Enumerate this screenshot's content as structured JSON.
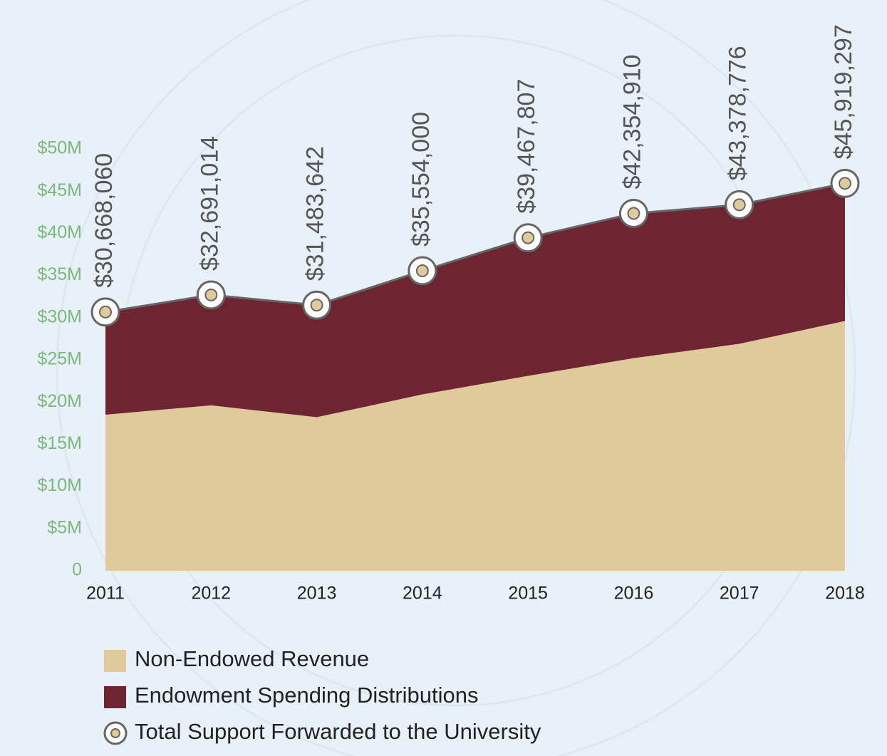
{
  "chart_data": {
    "type": "area",
    "stacked": true,
    "x": [
      2011,
      2012,
      2013,
      2014,
      2015,
      2016,
      2017,
      2018
    ],
    "ylim": [
      0,
      50000000
    ],
    "yticks": [
      {
        "value": 0,
        "label": "0"
      },
      {
        "value": 5000000,
        "label": "$5M"
      },
      {
        "value": 10000000,
        "label": "$10M"
      },
      {
        "value": 15000000,
        "label": "$15M"
      },
      {
        "value": 20000000,
        "label": "$20M"
      },
      {
        "value": 25000000,
        "label": "$25M"
      },
      {
        "value": 30000000,
        "label": "$30M"
      },
      {
        "value": 35000000,
        "label": "$35M"
      },
      {
        "value": 40000000,
        "label": "$40M"
      },
      {
        "value": 45000000,
        "label": "$45M"
      },
      {
        "value": 50000000,
        "label": "$50M"
      }
    ],
    "series": [
      {
        "name": "Non-Endowed Revenue",
        "color": "#e0ca9b",
        "values": [
          18500000,
          19600000,
          18200000,
          20900000,
          23100000,
          25200000,
          26900000,
          29600000
        ]
      },
      {
        "name": "Endowment Spending Distributions",
        "color": "#6f2431",
        "values": [
          12200000,
          13100000,
          13300000,
          14700000,
          16400000,
          17200000,
          16500000,
          16300000
        ]
      },
      {
        "name": "Total Support Forwarded to the University",
        "color": "#666666",
        "type": "line",
        "values": [
          30668060,
          32691014,
          31483642,
          35554000,
          39467807,
          42354910,
          43378776,
          45919297
        ],
        "value_labels": [
          "$30,668,060",
          "$32,691,014",
          "$31,483,642",
          "$35,554,000",
          "$39,467,807",
          "$42,354,910",
          "$43,378,776",
          "$45,919,297"
        ]
      }
    ]
  }
}
